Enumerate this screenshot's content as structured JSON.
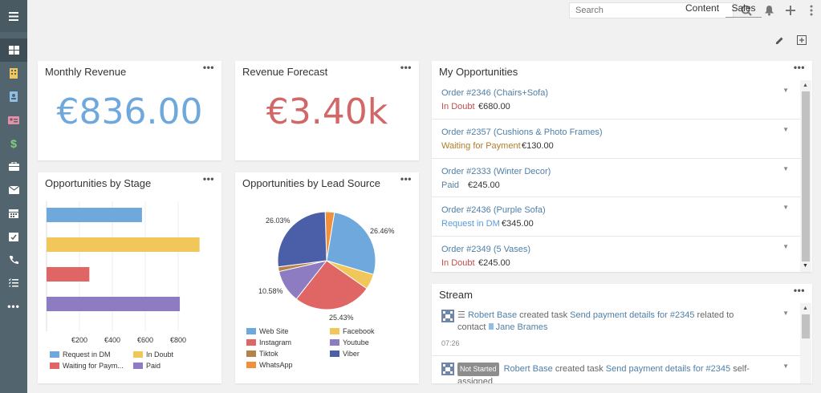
{
  "search": {
    "placeholder": "Search"
  },
  "tabs": [
    {
      "label": "Content"
    },
    {
      "label": "Sales"
    }
  ],
  "sidebar": {
    "icons": [
      "menu-icon",
      "dashboard-icon",
      "accounts-icon",
      "contacts-icon",
      "leads-icon",
      "opportunities-icon",
      "cases-icon",
      "email-icon",
      "calendar-icon",
      "tasks-icon",
      "calls-icon",
      "list-icon",
      "more-icon"
    ]
  },
  "monthly_revenue": {
    "title": "Monthly Revenue",
    "value": "€836.00",
    "color": "#6fa8dc"
  },
  "revenue_forecast": {
    "title": "Revenue Forecast",
    "value": "€3.40k",
    "color": "#d26767"
  },
  "opps_by_stage": {
    "title": "Opportunities by Stage"
  },
  "opps_by_source": {
    "title": "Opportunities by Lead Source"
  },
  "my_opportunities": {
    "title": "My Opportunities",
    "items": [
      {
        "name": "Order #2346 (Chairs+Sofa)",
        "status": "In Doubt",
        "status_color": "#c0504d",
        "amount": "€680.00"
      },
      {
        "name": "Order #2357 (Cushions & Photo Frames)",
        "status": "Waiting for Payment",
        "status_color": "#b07d2b",
        "amount": "€130.00"
      },
      {
        "name": "Order #2333 (Winter Decor)",
        "status": "Paid",
        "status_color": "#5b7fa0",
        "amount": "€245.00"
      },
      {
        "name": "Order #2436 (Purple Sofa)",
        "status": "Request in DM",
        "status_color": "#5b9bd5",
        "amount": "€345.00"
      },
      {
        "name": "Order #2349 (5 Vases)",
        "status": "In Doubt",
        "status_color": "#c0504d",
        "amount": "€245.00"
      }
    ]
  },
  "stream": {
    "title": "Stream",
    "items": [
      {
        "user": "Robert Base",
        "action": "created task",
        "task": "Send payment details for #2345",
        "suffix": "related to",
        "contact_label": "contact",
        "contact": "Jane Brames",
        "time": "07:26"
      },
      {
        "badge": "Not Started",
        "user": "Robert Base",
        "action": "created task",
        "task": "Send payment details for #2345",
        "suffix": "self-",
        "suffix2": "assigned"
      }
    ]
  },
  "chart_data": [
    {
      "type": "bar",
      "orientation": "horizontal",
      "categories": [
        "Request in DM",
        "In Doubt",
        "Waiting for Payment",
        "Paid"
      ],
      "values": [
        580,
        930,
        260,
        810
      ],
      "colors": [
        "#6fa8dc",
        "#f1c75b",
        "#e06666",
        "#8e7cc3"
      ],
      "x_ticks": [
        "€200",
        "€400",
        "€600",
        "€800"
      ],
      "xlim": [
        0,
        1000
      ],
      "legend": [
        "Request in DM",
        "In Doubt",
        "Waiting for Paym...",
        "Paid"
      ],
      "legend_placement": "bottom"
    },
    {
      "type": "pie",
      "slices": [
        {
          "label": "Web Site",
          "value": 26.46,
          "color": "#6fa8dc"
        },
        {
          "label": "Facebook",
          "value": 5.0,
          "color": "#f1c75b"
        },
        {
          "label": "Instagram",
          "value": 25.43,
          "color": "#e06666"
        },
        {
          "label": "Youtube",
          "value": 10.58,
          "color": "#8e7cc3"
        },
        {
          "label": "Tiktok",
          "value": 1.5,
          "color": "#b5834a"
        },
        {
          "label": "Viber",
          "value": 26.03,
          "color": "#4a5fa8"
        },
        {
          "label": "WhatsApp",
          "value": 3.0,
          "color": "#f0903a"
        }
      ],
      "data_labels": [
        "26.46%",
        "25.43%",
        "10.58%",
        "26.03%"
      ],
      "legend_placement": "bottom"
    }
  ]
}
